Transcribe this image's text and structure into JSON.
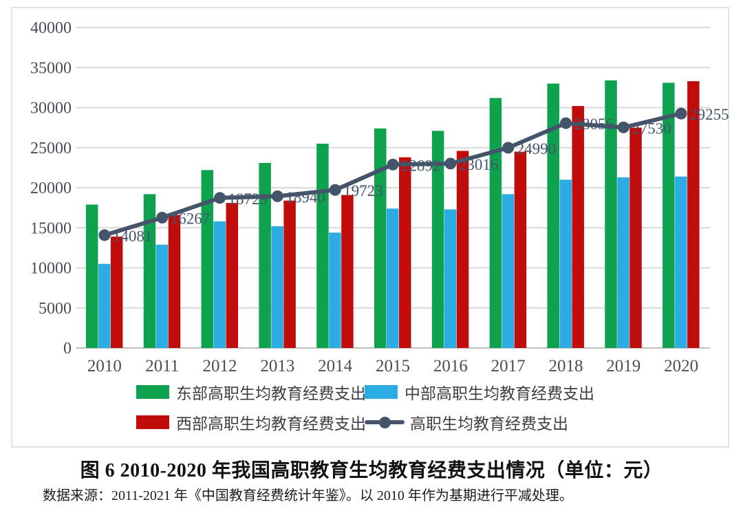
{
  "figure": {
    "caption": "图 6 2010-2020 年我国高职教育生均教育经费支出情况（单位：元）",
    "source": "数据来源：2011-2021 年《中国教育经费统计年鉴》。以 2010 年作为基期进行平减处理。"
  },
  "colors": {
    "east": "#0ea24e",
    "central": "#2bace2",
    "west": "#c00d0c",
    "line": "#44546a",
    "gridline": "#d9d9d9",
    "axis_line": "#bfbfbf",
    "tick_text": "#4a4d57",
    "data_label_text": "#44546a",
    "legend_text": "#3d3f45"
  },
  "chart_data": {
    "type": "bar",
    "subtype": "grouped-bars-with-line-overlay",
    "categories": [
      "2010",
      "2011",
      "2012",
      "2013",
      "2014",
      "2015",
      "2016",
      "2017",
      "2018",
      "2019",
      "2020"
    ],
    "series": [
      {
        "name": "东部高职生均教育经费支出",
        "type": "bar",
        "color_key": "east",
        "values": [
          17900,
          19200,
          22200,
          23100,
          25500,
          27400,
          27100,
          31200,
          33000,
          33400,
          33100
        ]
      },
      {
        "name": "中部高职生均教育经费支出",
        "type": "bar",
        "color_key": "central",
        "values": [
          10500,
          12900,
          15800,
          15200,
          14400,
          17400,
          17300,
          19200,
          21000,
          21300,
          21400
        ]
      },
      {
        "name": "西部高职生均教育经费支出",
        "type": "bar",
        "color_key": "west",
        "values": [
          13900,
          16600,
          18100,
          18400,
          19100,
          23800,
          24600,
          24500,
          30200,
          27500,
          33300
        ]
      },
      {
        "name": "高职生均教育经费支出",
        "type": "line",
        "color_key": "line",
        "show_data_labels": true,
        "values": [
          14081,
          16267,
          18729,
          18940,
          19723,
          22892,
          23016,
          24990,
          28056,
          27530,
          29255
        ]
      }
    ],
    "ylim": [
      0,
      40000
    ],
    "ytick_step": 5000,
    "ytick_labels": [
      "0",
      "5000",
      "10000",
      "15000",
      "20000",
      "25000",
      "30000",
      "35000",
      "40000"
    ],
    "grid": true,
    "legend_position": "bottom",
    "title": "图 6 2010-2020 年我国高职教育生均教育经费支出情况（单位：元）",
    "xlabel": "",
    "ylabel": ""
  }
}
